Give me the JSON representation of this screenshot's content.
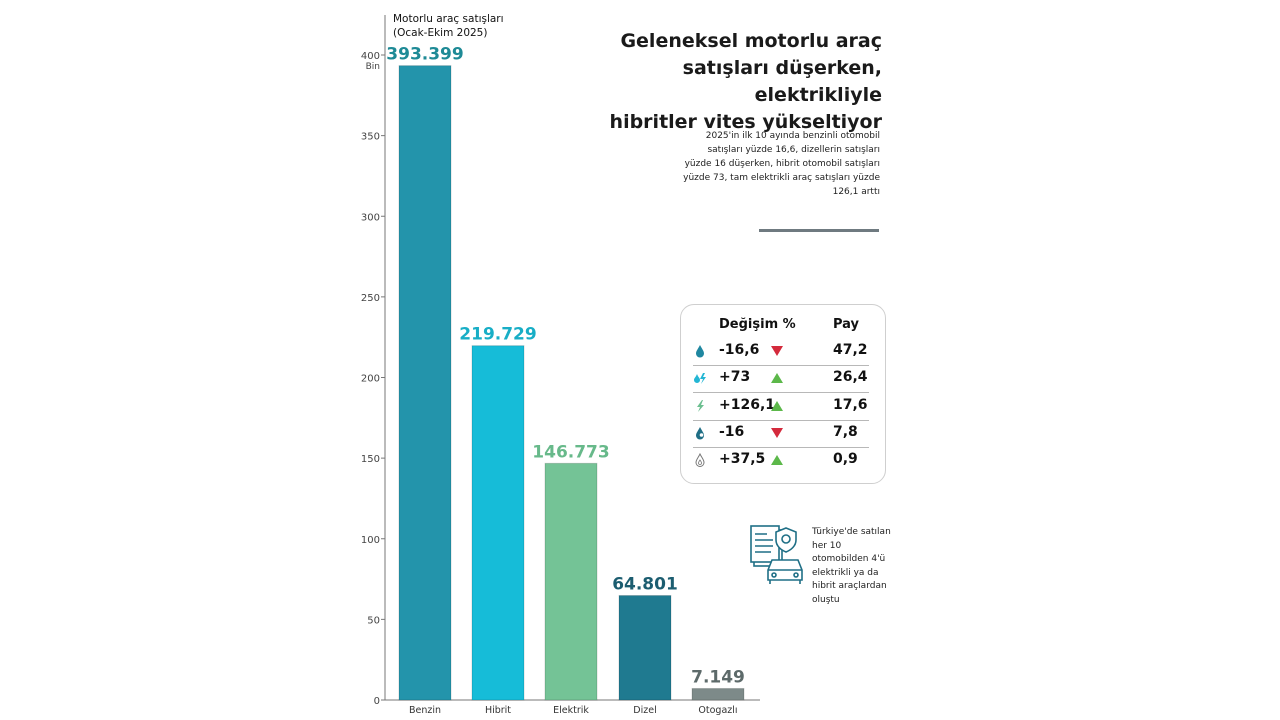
{
  "chart_data": {
    "type": "bar",
    "title": "Geleneksel motorlu araç satışları düşerken, elektrikliyle hibritler vites yükseltiyor",
    "subtitle": "Motorlu araç satışları (Ocak-Ekim 2025)",
    "ylabel_unit": "Bin",
    "categories": [
      "Benzin",
      "Hibrit",
      "Elektrik",
      "Dizel",
      "Otogazlı"
    ],
    "values": [
      393.399,
      219.729,
      146.773,
      64.801,
      7.149
    ],
    "value_labels": [
      "393.399",
      "219.729",
      "146.773",
      "64.801",
      "7.149"
    ],
    "colors": [
      "#2394ab",
      "#16bcd8",
      "#74c396",
      "#1f7a90",
      "#7d8a89"
    ],
    "label_colors": [
      "#1e8a96",
      "#18aec6",
      "#67b98a",
      "#1c5d70",
      "#5d6a6a"
    ],
    "yticks": [
      0,
      50,
      100,
      150,
      200,
      250,
      300,
      350,
      400
    ],
    "ylim": [
      0,
      400
    ],
    "grid": false,
    "xlabel": ""
  },
  "header": {
    "subtitle_line1": "Motorlu araç satışları",
    "subtitle_line2": "(Ocak-Ekim 2025)",
    "title_line1": "Geleneksel motorlu araç",
    "title_line2": "satışları düşerken, elektrikliyle",
    "title_line3": "hibritler vites yükseltiyor",
    "description": "2025'in ilk 10 ayında benzinli otomobil satışları yüzde 16,6, dizellerin satışları yüzde 16 düşerken, hibrit otomobil satışları yüzde 73, tam elektrikli araç satışları yüzde 126,1 arttı",
    "unit_label": "Bin"
  },
  "table": {
    "header_change": "Değişim %",
    "header_share": "Pay",
    "rows": [
      {
        "icon": "fuel-drop-icon",
        "change": "-16,6",
        "direction": "down",
        "share": "47,2"
      },
      {
        "icon": "hybrid-icon",
        "change": "+73",
        "direction": "up",
        "share": "26,4"
      },
      {
        "icon": "lightning-icon",
        "change": "+126,1",
        "direction": "up",
        "share": "17,6"
      },
      {
        "icon": "diesel-drop-icon",
        "change": "-16",
        "direction": "down",
        "share": "7,8"
      },
      {
        "icon": "lpg-drop-icon",
        "change": "+37,5",
        "direction": "up",
        "share": "0,9"
      }
    ],
    "up_color": "#5cb84a",
    "down_color": "#d42a3c"
  },
  "note": {
    "text": "Türkiye'de satılan her 10 otomobilden 4'ü elektrikli ya da hibrit araçlardan oluştu"
  }
}
